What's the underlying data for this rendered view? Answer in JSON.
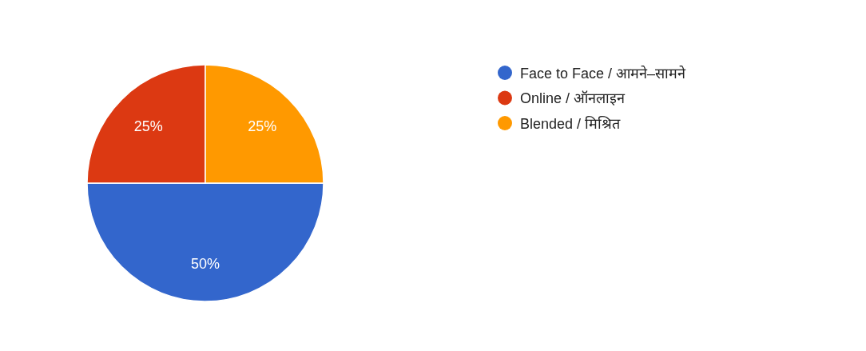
{
  "chart_data": {
    "type": "pie",
    "categories": [
      "Face to Face / आमने–सामने",
      "Online / ऑनलाइन",
      "Blended / मिश्रित"
    ],
    "values": [
      50,
      25,
      25
    ],
    "colors": [
      "#3366cc",
      "#dc3912",
      "#ff9900"
    ],
    "value_labels": [
      "50%",
      "25%",
      "25%"
    ],
    "legend": "top right"
  }
}
